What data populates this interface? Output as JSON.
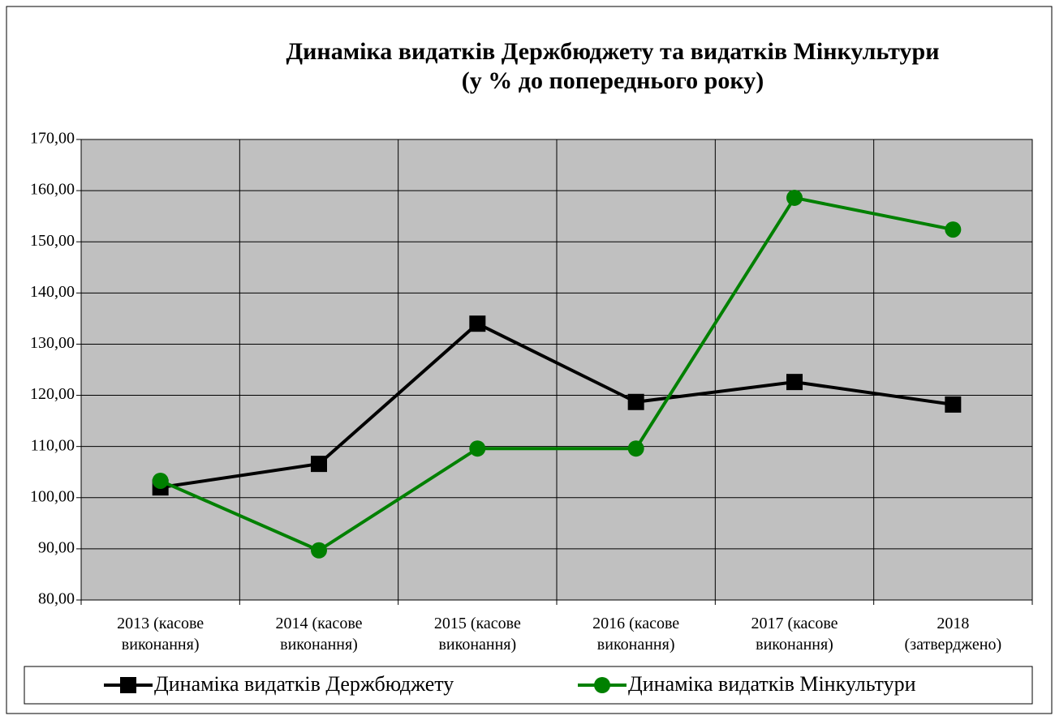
{
  "chart_data": {
    "type": "line",
    "title": "Динаміка видатків Держбюджету та видатків Мінкультури",
    "subtitle": "(у % до попереднього року)",
    "categories": [
      "2013 (касове виконання)",
      "2014 (касове виконання)",
      "2015 (касове виконання)",
      "2016 (касове виконання)",
      "2017 (касове виконання)",
      "2018 (затверджено)"
    ],
    "series": [
      {
        "name": "Динаміка видатків Держбюджету",
        "color": "#000000",
        "marker": "square",
        "values": [
          102.0,
          106.6,
          134.0,
          118.7,
          122.6,
          118.2
        ]
      },
      {
        "name": "Динаміка видатків Мінкультури",
        "color": "#008000",
        "marker": "circle",
        "values": [
          103.3,
          89.7,
          109.6,
          109.6,
          158.6,
          152.4
        ]
      }
    ],
    "ylim": [
      80,
      170
    ],
    "yticks": [
      {
        "value": 80,
        "label": "80,00"
      },
      {
        "value": 90,
        "label": "90,00"
      },
      {
        "value": 100,
        "label": "100,00"
      },
      {
        "value": 110,
        "label": "110,00"
      },
      {
        "value": 120,
        "label": "120,00"
      },
      {
        "value": 130,
        "label": "130,00"
      },
      {
        "value": 140,
        "label": "140,00"
      },
      {
        "value": 150,
        "label": "150,00"
      },
      {
        "value": 160,
        "label": "160,00"
      },
      {
        "value": 170,
        "label": "170,00"
      }
    ],
    "grid": true,
    "plot_background": "#c0c0c0",
    "legend": "bottom"
  }
}
